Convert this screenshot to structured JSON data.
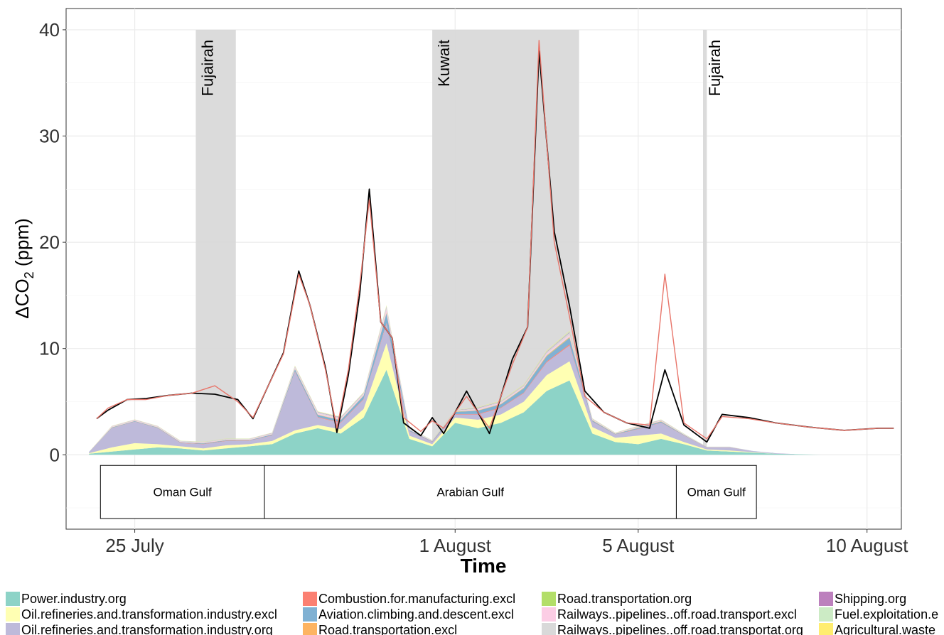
{
  "chart_data": {
    "type": "area",
    "title": "",
    "xlabel": "Time",
    "ylabel": "ΔCO",
    "ylabel_sub": "2",
    "ylabel_unit": " (ppm)",
    "xlim": [
      "2018-07-23T12:00",
      "2018-08-10T18:00"
    ],
    "ylim": [
      -7,
      42
    ],
    "x_ticks": [
      {
        "date": "2018-07-25",
        "label": "25 July"
      },
      {
        "date": "2018-08-01",
        "label": "1 August"
      },
      {
        "date": "2018-08-05",
        "label": "5 August"
      },
      {
        "date": "2018-08-10",
        "label": "10 August"
      }
    ],
    "y_ticks": [
      0,
      10,
      20,
      30,
      40
    ],
    "grid": true,
    "legend_position": "bottom",
    "region_bands": [
      {
        "label": "Fujairah",
        "start": "2018-07-26T08:00",
        "end": "2018-07-27T05:00"
      },
      {
        "label": "Kuwait",
        "start": "2018-07-31T12:00",
        "end": "2018-08-03T17:00"
      },
      {
        "label": "Fujairah",
        "start": "2018-08-06T10:00",
        "end": "2018-08-06T12:00"
      }
    ],
    "segments": [
      {
        "label": "Oman Gulf",
        "start": "2018-07-24T06:00",
        "end": "2018-07-27T20:00"
      },
      {
        "label": "Arabian Gulf",
        "start": "2018-07-27T20:00",
        "end": "2018-08-05T20:00"
      },
      {
        "label": "Oman Gulf",
        "start": "2018-08-05T20:00",
        "end": "2018-08-07T14:00"
      }
    ],
    "observed_line": {
      "color": "#000000",
      "x": [
        "2018-07-24T04:00",
        "2018-07-24T10:00",
        "2018-07-24T20:00",
        "2018-07-25T06:00",
        "2018-07-25T18:00",
        "2018-07-26T06:00",
        "2018-07-26T18:00",
        "2018-07-27T06:00",
        "2018-07-27T14:00",
        "2018-07-28T06:00",
        "2018-07-28T14:00",
        "2018-07-28T20:00",
        "2018-07-29T04:00",
        "2018-07-29T10:00",
        "2018-07-29T16:00",
        "2018-07-29T22:00",
        "2018-07-30T03:00",
        "2018-07-30T09:00",
        "2018-07-30T15:00",
        "2018-07-30T21:00",
        "2018-07-31T06:00",
        "2018-07-31T12:00",
        "2018-07-31T18:00",
        "2018-08-01T06:00",
        "2018-08-01T18:00",
        "2018-08-02T06:00",
        "2018-08-02T14:00",
        "2018-08-02T20:00",
        "2018-08-03T04:00",
        "2018-08-03T12:00",
        "2018-08-03T20:00",
        "2018-08-04T06:00",
        "2018-08-04T18:00",
        "2018-08-05T06:00",
        "2018-08-05T14:00",
        "2018-08-06T00:00",
        "2018-08-06T12:00",
        "2018-08-06T20:00",
        "2018-08-07T10:00",
        "2018-08-08T00:00",
        "2018-08-08T18:00",
        "2018-08-09T12:00",
        "2018-08-10T06:00",
        "2018-08-10T14:00"
      ],
      "y": [
        3.4,
        4.2,
        5.2,
        5.3,
        5.6,
        5.8,
        5.7,
        5.2,
        3.4,
        9.6,
        17.3,
        14.0,
        8.2,
        2.1,
        7.5,
        15.2,
        25.0,
        12.5,
        11.0,
        3.0,
        1.8,
        3.5,
        2.0,
        6.0,
        2.0,
        9.0,
        12.0,
        38.0,
        21.0,
        14.0,
        6.0,
        4.0,
        3.0,
        2.5,
        8.0,
        2.8,
        1.2,
        3.8,
        3.5,
        3.0,
        2.6,
        2.3,
        2.5,
        2.5
      ]
    },
    "model_line": {
      "color": "#e8756a",
      "x": [
        "2018-07-24T04:00",
        "2018-07-24T10:00",
        "2018-07-24T20:00",
        "2018-07-25T06:00",
        "2018-07-25T18:00",
        "2018-07-26T06:00",
        "2018-07-26T18:00",
        "2018-07-27T06:00",
        "2018-07-27T14:00",
        "2018-07-28T06:00",
        "2018-07-28T14:00",
        "2018-07-28T20:00",
        "2018-07-29T04:00",
        "2018-07-29T10:00",
        "2018-07-29T16:00",
        "2018-07-29T22:00",
        "2018-07-30T03:00",
        "2018-07-30T09:00",
        "2018-07-30T15:00",
        "2018-07-30T21:00",
        "2018-07-31T06:00",
        "2018-07-31T12:00",
        "2018-07-31T18:00",
        "2018-08-01T06:00",
        "2018-08-01T18:00",
        "2018-08-02T06:00",
        "2018-08-02T14:00",
        "2018-08-02T20:00",
        "2018-08-03T04:00",
        "2018-08-03T12:00",
        "2018-08-03T20:00",
        "2018-08-04T06:00",
        "2018-08-04T18:00",
        "2018-08-05T06:00",
        "2018-08-05T14:00",
        "2018-08-06T00:00",
        "2018-08-06T12:00",
        "2018-08-06T20:00",
        "2018-08-07T10:00",
        "2018-08-08T00:00",
        "2018-08-08T18:00",
        "2018-08-09T12:00",
        "2018-08-10T06:00",
        "2018-08-10T14:00"
      ],
      "y": [
        3.4,
        4.4,
        5.2,
        5.2,
        5.6,
        5.8,
        6.5,
        5.0,
        3.5,
        9.5,
        17.0,
        14.0,
        8.0,
        2.5,
        8.0,
        16.0,
        24.0,
        12.5,
        11.0,
        3.5,
        2.2,
        3.2,
        2.5,
        5.5,
        2.5,
        8.5,
        12.0,
        39.0,
        20.0,
        13.0,
        5.5,
        4.0,
        3.0,
        2.8,
        17.0,
        3.0,
        1.5,
        3.6,
        3.4,
        3.0,
        2.6,
        2.3,
        2.5,
        2.5
      ]
    },
    "stacked_x": [
      "2018-07-24T00:00",
      "2018-07-24T12:00",
      "2018-07-25T00:00",
      "2018-07-25T12:00",
      "2018-07-26T00:00",
      "2018-07-26T12:00",
      "2018-07-27T00:00",
      "2018-07-27T12:00",
      "2018-07-28T00:00",
      "2018-07-28T12:00",
      "2018-07-29T00:00",
      "2018-07-29T12:00",
      "2018-07-30T00:00",
      "2018-07-30T12:00",
      "2018-07-31T00:00",
      "2018-07-31T12:00",
      "2018-08-01T00:00",
      "2018-08-01T12:00",
      "2018-08-02T00:00",
      "2018-08-02T12:00",
      "2018-08-03T00:00",
      "2018-08-03T12:00",
      "2018-08-04T00:00",
      "2018-08-04T12:00",
      "2018-08-05T00:00",
      "2018-08-05T12:00",
      "2018-08-06T00:00",
      "2018-08-06T12:00",
      "2018-08-07T00:00",
      "2018-08-07T12:00",
      "2018-08-08T00:00",
      "2018-08-08T12:00",
      "2018-08-09T00:00",
      "2018-08-09T12:00",
      "2018-08-10T00:00",
      "2018-08-10T12:00"
    ],
    "series": [
      {
        "name": "Power.industry.org",
        "color": "#8dd3c7",
        "values": [
          0.1,
          0.3,
          0.5,
          0.7,
          0.6,
          0.4,
          0.6,
          0.8,
          1.0,
          2.0,
          2.5,
          2.0,
          3.5,
          8.0,
          1.5,
          0.8,
          3.0,
          2.5,
          3.0,
          4.0,
          6.0,
          7.0,
          2.0,
          1.2,
          1.0,
          1.5,
          1.0,
          0.4,
          0.3,
          0.2,
          0.1,
          0.05,
          0.0,
          0.0,
          0.0,
          0.0
        ]
      },
      {
        "name": "Oil.refineries.and.transformation.industry.excl",
        "color": "#ffffb3",
        "values": [
          0.05,
          0.4,
          0.6,
          0.3,
          0.2,
          0.2,
          0.3,
          0.2,
          0.3,
          0.3,
          0.3,
          0.4,
          0.8,
          2.5,
          0.3,
          0.2,
          0.5,
          0.8,
          0.8,
          1.0,
          1.5,
          1.8,
          0.6,
          0.4,
          0.8,
          0.5,
          0.2,
          0.1,
          0.1,
          0.05,
          0.0,
          0.0,
          0.0,
          0.0,
          0.0,
          0.0
        ]
      },
      {
        "name": "Oil.refineries.and.transformation.industry.org",
        "color": "#bebada",
        "values": [
          0.1,
          1.8,
          2.0,
          1.5,
          0.3,
          0.4,
          0.4,
          0.3,
          0.5,
          5.5,
          0.7,
          0.6,
          0.9,
          1.8,
          0.4,
          0.2,
          0.3,
          0.5,
          0.6,
          0.8,
          1.2,
          1.5,
          0.5,
          0.3,
          0.6,
          1.0,
          0.6,
          0.2,
          0.3,
          0.1,
          0.05,
          0.0,
          0.0,
          0.0,
          0.0,
          0.0
        ]
      },
      {
        "name": "Combustion.for.manufacturing.excl",
        "color": "#fb8072",
        "values": [
          0.0,
          0.02,
          0.02,
          0.02,
          0.02,
          0.02,
          0.02,
          0.02,
          0.03,
          0.05,
          0.05,
          0.05,
          0.05,
          0.1,
          0.03,
          0.02,
          0.03,
          0.05,
          0.05,
          0.05,
          0.08,
          0.1,
          0.03,
          0.02,
          0.03,
          0.03,
          0.02,
          0.01,
          0.01,
          0.0,
          0.0,
          0.0,
          0.0,
          0.0,
          0.0,
          0.0
        ]
      },
      {
        "name": "Aviation.climbing.and.descent.excl",
        "color": "#80b1d3",
        "values": [
          0.02,
          0.05,
          0.05,
          0.05,
          0.05,
          0.05,
          0.05,
          0.05,
          0.08,
          0.2,
          0.2,
          0.2,
          0.3,
          0.9,
          0.1,
          0.05,
          0.2,
          0.3,
          0.3,
          0.4,
          0.5,
          0.6,
          0.1,
          0.05,
          0.1,
          0.1,
          0.05,
          0.02,
          0.02,
          0.01,
          0.0,
          0.0,
          0.0,
          0.0,
          0.0,
          0.0
        ]
      },
      {
        "name": "Road.transportation.excl",
        "color": "#fdb462",
        "values": [
          0.0,
          0.01,
          0.01,
          0.01,
          0.01,
          0.01,
          0.01,
          0.01,
          0.01,
          0.02,
          0.02,
          0.02,
          0.02,
          0.05,
          0.01,
          0.01,
          0.02,
          0.02,
          0.02,
          0.03,
          0.04,
          0.05,
          0.02,
          0.01,
          0.02,
          0.02,
          0.01,
          0.0,
          0.0,
          0.0,
          0.0,
          0.0,
          0.0,
          0.0,
          0.0,
          0.0
        ]
      },
      {
        "name": "Road.transportation.org",
        "color": "#b3de69",
        "values": [
          0.0,
          0.01,
          0.01,
          0.01,
          0.01,
          0.01,
          0.01,
          0.01,
          0.01,
          0.02,
          0.02,
          0.02,
          0.02,
          0.04,
          0.01,
          0.01,
          0.02,
          0.02,
          0.02,
          0.03,
          0.04,
          0.04,
          0.02,
          0.01,
          0.02,
          0.02,
          0.01,
          0.0,
          0.0,
          0.0,
          0.0,
          0.0,
          0.0,
          0.0,
          0.0,
          0.0
        ]
      },
      {
        "name": "Railways..pipelines..off.road.transport.excl",
        "color": "#fccde5",
        "values": [
          0.0,
          0.05,
          0.05,
          0.05,
          0.05,
          0.05,
          0.05,
          0.05,
          0.05,
          0.1,
          0.1,
          0.1,
          0.1,
          0.3,
          0.05,
          0.03,
          0.05,
          0.1,
          0.1,
          0.1,
          0.15,
          0.2,
          0.05,
          0.03,
          0.05,
          0.05,
          0.03,
          0.01,
          0.01,
          0.0,
          0.0,
          0.0,
          0.0,
          0.0,
          0.0,
          0.0
        ]
      },
      {
        "name": "Railways..pipelines..off.road.transportat.org",
        "color": "#d9d9d9",
        "values": [
          0.0,
          0.05,
          0.05,
          0.05,
          0.05,
          0.05,
          0.05,
          0.05,
          0.05,
          0.1,
          0.1,
          0.1,
          0.1,
          0.2,
          0.05,
          0.03,
          0.05,
          0.1,
          0.1,
          0.1,
          0.15,
          0.2,
          0.05,
          0.03,
          0.05,
          0.05,
          0.03,
          0.01,
          0.01,
          0.0,
          0.0,
          0.0,
          0.0,
          0.0,
          0.0,
          0.0
        ]
      },
      {
        "name": "Shipping.org",
        "color": "#bc80bd",
        "values": [
          0.0,
          0.01,
          0.01,
          0.01,
          0.01,
          0.01,
          0.01,
          0.01,
          0.02,
          0.03,
          0.03,
          0.03,
          0.03,
          0.05,
          0.02,
          0.01,
          0.02,
          0.03,
          0.03,
          0.03,
          0.04,
          0.05,
          0.02,
          0.01,
          0.02,
          0.02,
          0.01,
          0.0,
          0.0,
          0.0,
          0.0,
          0.0,
          0.0,
          0.0,
          0.0,
          0.0
        ]
      },
      {
        "name": "Fuel.exploitation.e",
        "color": "#ccebc5",
        "values": [
          0.0,
          0.02,
          0.02,
          0.02,
          0.02,
          0.02,
          0.02,
          0.02,
          0.03,
          0.05,
          0.05,
          0.05,
          0.05,
          0.1,
          0.03,
          0.02,
          0.03,
          0.05,
          0.05,
          0.05,
          0.08,
          0.1,
          0.03,
          0.02,
          0.03,
          0.03,
          0.02,
          0.01,
          0.01,
          0.0,
          0.0,
          0.0,
          0.0,
          0.0,
          0.0,
          0.0
        ]
      },
      {
        "name": "Agricultural.waste",
        "color": "#ffed6f",
        "values": [
          0.0,
          0.01,
          0.01,
          0.01,
          0.01,
          0.01,
          0.01,
          0.01,
          0.01,
          0.02,
          0.02,
          0.02,
          0.02,
          0.03,
          0.01,
          0.01,
          0.01,
          0.02,
          0.02,
          0.02,
          0.03,
          0.03,
          0.01,
          0.01,
          0.01,
          0.01,
          0.01,
          0.0,
          0.0,
          0.0,
          0.0,
          0.0,
          0.0,
          0.0,
          0.0,
          0.0
        ]
      }
    ]
  }
}
